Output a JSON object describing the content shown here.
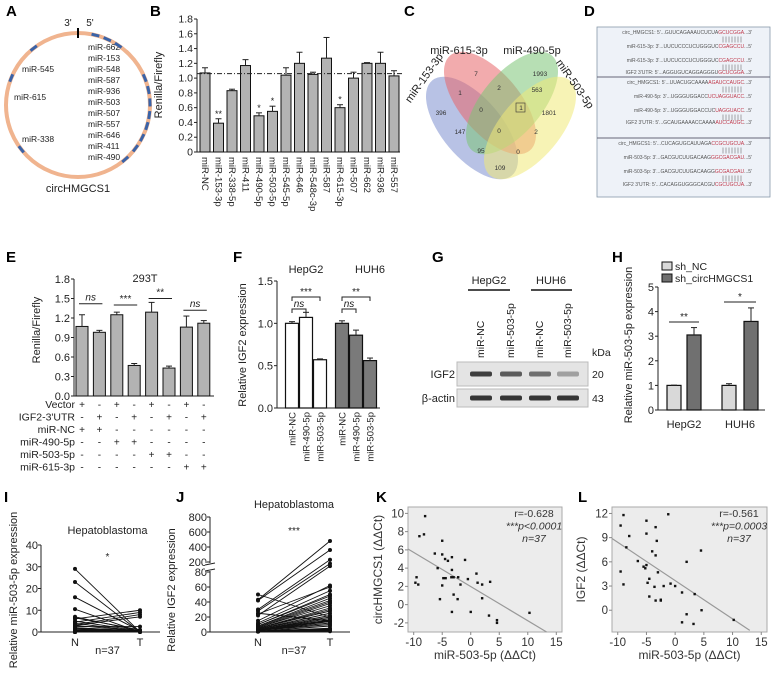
{
  "panel_labels": [
    "A",
    "B",
    "C",
    "D",
    "E",
    "F",
    "G",
    "H",
    "I",
    "J",
    "K",
    "L"
  ],
  "panel_a": {
    "name": "circHMGCS1",
    "end3": "3'",
    "end5": "5'",
    "sites": [
      "miR-662",
      "miR-153",
      "miR-548",
      "miR-587",
      "miR-936",
      "miR-503",
      "miR-507",
      "miR-557",
      "miR-646",
      "miR-411",
      "miR-490",
      "miR-338",
      "miR-615",
      "miR-545"
    ],
    "colors": {
      "ring": "#f0b48f",
      "site": "#3a63a8"
    }
  },
  "panel_c": {
    "sets": [
      "miR-153-3p",
      "miR-615-3p",
      "miR-490-5p",
      "miR-503-5p"
    ],
    "regions": [
      "7",
      "1993",
      "1",
      "2",
      "563",
      "396",
      "0",
      "1",
      "1801",
      "147",
      "0",
      "2",
      "95",
      "0",
      "109"
    ],
    "colors": [
      "#7d8fd0",
      "#e8666a",
      "#7cc576",
      "#f0e978"
    ]
  },
  "panel_d": {
    "lines": [
      [
        "circ_HMGCS1: 5'...GUUCAGAAAUCUCUA",
        "GCUCGGA",
        "...3'"
      ],
      [
        "miR-615-3p: 3'...UUCUCCCUCUGGGUC",
        "CGAGCCU",
        "...5'"
      ],
      [
        "miR-615-3p: 3'...UUCUCCCUCUGGGUC",
        "CGAGCCU",
        "...5'"
      ],
      [
        "IGF2 3'UTR: 5'...AGGUGUCAGGAGGGU",
        "GCUCGGA",
        "...3'"
      ],
      [
        "circ_HMGCS1: 5'...UUACUGCAAAA",
        "AGAUCCAUGC",
        "...3'"
      ],
      [
        "miR-490-5p: 3'...UGGGUGGACC",
        "UCUAGGUACC",
        "...5'"
      ],
      [
        "miR-490-5p: 3'...UGGGUGGACCUC",
        "UAGGUACC",
        "...5'"
      ],
      [
        "IGF2 3'UTR: 5'...GCAUGAAAACCAAAA",
        "AUCCAUGC",
        "...3'"
      ],
      [
        "circ_HMGCS1: 5'...CUCAGUGCAUUAGA",
        "CCGCUGCUA",
        "...3'"
      ],
      [
        "miR-503-5p: 3'...GACGUCUUGACAAG",
        "GGCGACGAU",
        "...5'"
      ],
      [
        "miR-503-5p: 3'...GACGUCUUGACAAGG",
        "GCGACGAU",
        "...5'"
      ],
      [
        "IGF2 3'UTR: 5'...CACAGGUGGGCACGU",
        "CGCUGCUA",
        "...3'"
      ]
    ],
    "highlight_color": "#c0394b"
  },
  "panel_g": {
    "cell_lines": [
      "HepG2",
      "HUH6"
    ],
    "lanes": [
      "miR-NC",
      "miR-503-5p",
      "miR-NC",
      "miR-503-5p"
    ],
    "blots": [
      {
        "label": "IGF2",
        "kda": "20",
        "intensity": [
          0.85,
          0.7,
          0.6,
          0.35
        ]
      },
      {
        "label": "β-actin",
        "kda": "43",
        "intensity": [
          0.9,
          0.9,
          0.9,
          0.9
        ]
      }
    ],
    "kda_label": "kDa"
  },
  "chart_data": [
    {
      "panel": "B",
      "type": "bar",
      "ylabel": "Renilla/Firefly",
      "ylim": [
        0,
        1.8
      ],
      "yticks": [
        "0",
        "0.2",
        "0.4",
        "0.6",
        "0.8",
        "1.0",
        "1.2",
        "1.4",
        "1.6",
        "1.8"
      ],
      "reference_line": 1.06,
      "categories": [
        "miR-NC",
        "miR-153-3p",
        "miR-338-5p",
        "miR-411",
        "miR-490-5p",
        "miR-503-5p",
        "miR-545-5p",
        "miR-646",
        "miR-548c-3p",
        "miR-587",
        "miR-615-3p",
        "miR-507",
        "miR-662",
        "miR-936",
        "miR-557"
      ],
      "values": [
        1.07,
        0.39,
        0.83,
        1.17,
        0.49,
        0.55,
        1.04,
        1.2,
        1.05,
        1.27,
        0.6,
        1.0,
        1.2,
        1.2,
        1.03
      ],
      "errors": [
        0.07,
        0.06,
        0.02,
        0.08,
        0.04,
        0.07,
        0.1,
        0.15,
        0.03,
        0.28,
        0.04,
        0.08,
        0.01,
        0.15,
        0.07
      ],
      "significance": [
        "",
        "**",
        "",
        "",
        "*",
        "*",
        "",
        "",
        "",
        "",
        "*",
        "",
        "",
        "",
        ""
      ],
      "color": "#b3b3b3"
    },
    {
      "panel": "E",
      "type": "bar",
      "title": "293T",
      "ylabel": "Renilla/Firefly",
      "ylim": [
        0,
        1.8
      ],
      "yticks": [
        "0.0",
        "0.3",
        "0.6",
        "0.9",
        "1.2",
        "1.5",
        "1.8"
      ],
      "values": [
        1.07,
        0.98,
        1.25,
        0.47,
        1.29,
        0.43,
        1.06,
        1.12
      ],
      "errors": [
        0.18,
        0.03,
        0.04,
        0.03,
        0.15,
        0.03,
        0.17,
        0.04
      ],
      "comparisons": [
        {
          "pair": [
            0,
            1
          ],
          "label": "ns",
          "y": 1.42
        },
        {
          "pair": [
            2,
            3
          ],
          "label": "***",
          "y": 1.4
        },
        {
          "pair": [
            4,
            5
          ],
          "label": "**",
          "y": 1.5
        },
        {
          "pair": [
            6,
            7
          ],
          "label": "ns",
          "y": 1.32
        }
      ],
      "conditions": [
        {
          "label": "Vector",
          "marks": [
            "+",
            "-",
            "+",
            "-",
            "+",
            "-",
            "+",
            "-"
          ]
        },
        {
          "label": "IGF2-3'UTR",
          "marks": [
            "-",
            "+",
            "-",
            "+",
            "-",
            "+",
            "-",
            "+"
          ]
        },
        {
          "label": "miR-NC",
          "marks": [
            "+",
            "+",
            "-",
            "-",
            "-",
            "-",
            "-",
            "-"
          ]
        },
        {
          "label": "miR-490-5p",
          "marks": [
            "-",
            "-",
            "+",
            "+",
            "-",
            "-",
            "-",
            "-"
          ]
        },
        {
          "label": "miR-503-5p",
          "marks": [
            "-",
            "-",
            "-",
            "-",
            "+",
            "+",
            "-",
            "-"
          ]
        },
        {
          "label": "miR-615-3p",
          "marks": [
            "-",
            "-",
            "-",
            "-",
            "-",
            "-",
            "+",
            "+"
          ]
        }
      ],
      "color": "#b3b3b3"
    },
    {
      "panel": "F",
      "type": "bar",
      "ylabel": "Relative IGF2 expression",
      "ylim": [
        0,
        1.5
      ],
      "yticks": [
        "0.0",
        "0.5",
        "1.0",
        "1.5"
      ],
      "groups": [
        "HepG2",
        "HUH6"
      ],
      "categories": [
        "miR-NC",
        "miR-490-5p",
        "miR-503-5p"
      ],
      "series": [
        {
          "group": "HepG2",
          "values": [
            1.0,
            1.07,
            0.57
          ],
          "errors": [
            0.02,
            0.06,
            0.01
          ],
          "color": "#ffffff"
        },
        {
          "group": "HUH6",
          "values": [
            1.0,
            0.86,
            0.56
          ],
          "errors": [
            0.03,
            0.06,
            0.03
          ],
          "color": "#7a7a7a"
        }
      ],
      "comparisons": [
        {
          "group": 0,
          "pair": [
            0,
            2
          ],
          "label": "***"
        },
        {
          "group": 0,
          "pair": [
            0,
            1
          ],
          "label": "ns"
        },
        {
          "group": 1,
          "pair": [
            0,
            2
          ],
          "label": "**"
        },
        {
          "group": 1,
          "pair": [
            0,
            1
          ],
          "label": "ns"
        }
      ]
    },
    {
      "panel": "H",
      "type": "bar",
      "ylabel": "Relative miR-503-5p expression",
      "ylim": [
        0,
        5
      ],
      "yticks": [
        "0",
        "1",
        "2",
        "3",
        "4",
        "5"
      ],
      "categories": [
        "HepG2",
        "HUH6"
      ],
      "series": [
        {
          "name": "sh_NC",
          "values": [
            1.0,
            1.0
          ],
          "errors": [
            0.01,
            0.07
          ],
          "color": "#d9d9d9"
        },
        {
          "name": "sh_circHMGCS1",
          "values": [
            3.05,
            3.6
          ],
          "errors": [
            0.3,
            0.55
          ],
          "color": "#707070"
        }
      ],
      "significance": [
        "**",
        "*"
      ],
      "legend": "top"
    },
    {
      "panel": "I",
      "type": "line",
      "title": "Hepatoblastoma",
      "ylabel": "Relative miR-503-5p expression",
      "ylim": [
        0,
        40
      ],
      "yticks": [
        "0",
        "10",
        "20",
        "30",
        "40"
      ],
      "categories": [
        "N",
        "T"
      ],
      "n_label": "n=37",
      "significance": "*",
      "N": [
        29,
        23,
        16,
        10.5,
        7,
        6.5,
        6,
        5,
        4.5,
        4,
        3.5,
        3,
        3,
        2.5,
        2,
        2,
        1.5,
        1.5,
        1,
        1,
        1,
        0.8,
        0.5,
        0.5,
        0.5,
        0.3,
        0.3,
        0.2,
        0.2,
        0.1,
        0.1,
        0.1,
        0,
        0,
        0,
        0,
        0
      ],
      "T": [
        0,
        0,
        0.5,
        0,
        0.5,
        1,
        10,
        0.5,
        9,
        0.3,
        8,
        0.5,
        7,
        2.5,
        0.5,
        0.2,
        0.3,
        0.5,
        0.2,
        0.1,
        0.5,
        0.3,
        0.2,
        0.1,
        0.5,
        0.3,
        0.1,
        0.2,
        0.1,
        0.3,
        0.2,
        0.5,
        0.1,
        0.2,
        0.3,
        0.1,
        0.2
      ]
    },
    {
      "panel": "J",
      "type": "line",
      "title": "Hepatoblastoma",
      "ylabel": "Relative IGF2 expression",
      "ylim": [
        0,
        800
      ],
      "axis_break": [
        80,
        200
      ],
      "yticks": [
        "0",
        "20",
        "40",
        "60",
        "80",
        "200",
        "400",
        "600",
        "800"
      ],
      "categories": [
        "N",
        "T"
      ],
      "n_label": "n=37",
      "significance": "***",
      "N": [
        50,
        43,
        42,
        30,
        28,
        25,
        24,
        22,
        15,
        12,
        10,
        10,
        8,
        8,
        7,
        6,
        6,
        5,
        5,
        5,
        4,
        4,
        3,
        3,
        3,
        2,
        2,
        2,
        2,
        1,
        1,
        1,
        1,
        1,
        0.5,
        0.5,
        0.5
      ],
      "T": [
        20,
        480,
        360,
        230,
        180,
        15,
        60,
        150,
        62,
        55,
        50,
        48,
        45,
        42,
        40,
        38,
        35,
        32,
        30,
        28,
        25,
        22,
        20,
        18,
        16,
        15,
        14,
        12,
        10,
        8,
        5,
        4,
        3,
        3,
        2,
        2,
        1
      ]
    },
    {
      "panel": "K",
      "type": "scatter",
      "xlabel": "miR-503-5p (ΔΔCt)",
      "ylabel": "circHMGCS1 (ΔΔCt)",
      "xlim": [
        -11,
        16
      ],
      "ylim": [
        -3,
        10.7
      ],
      "xticks": [
        "-10",
        "-5",
        "0",
        "5",
        "10",
        "15"
      ],
      "yticks": [
        "-2",
        "0",
        "2",
        "4",
        "6",
        "8",
        "10"
      ],
      "annotations": [
        "r=-0.628",
        "***p<0.0001",
        "n=37"
      ],
      "fit": [
        [
          -11,
          6.1
        ],
        [
          13.3,
          -3
        ]
      ],
      "points": [
        [
          -8,
          9.7
        ],
        [
          -9,
          7.5
        ],
        [
          -8.2,
          7.7
        ],
        [
          -5,
          7
        ],
        [
          -6.3,
          5.6
        ],
        [
          -5,
          5.5
        ],
        [
          -4.5,
          5
        ],
        [
          -4,
          4.8
        ],
        [
          -3.3,
          5.2
        ],
        [
          -1,
          4.9
        ],
        [
          -5.8,
          4
        ],
        [
          -3.3,
          3.8
        ],
        [
          -9.5,
          3
        ],
        [
          -9.7,
          2.4
        ],
        [
          -9.2,
          2.2
        ],
        [
          -4.8,
          2.9
        ],
        [
          -4.4,
          2.9
        ],
        [
          -3.4,
          3
        ],
        [
          -3,
          3
        ],
        [
          -2.2,
          3
        ],
        [
          -0.5,
          2.8
        ],
        [
          1,
          3.4
        ],
        [
          3.4,
          2.5
        ],
        [
          -1.8,
          2.2
        ],
        [
          1.2,
          2.4
        ],
        [
          2,
          2.2
        ],
        [
          -5,
          2.1
        ],
        [
          -5.4,
          0.6
        ],
        [
          -3,
          1.1
        ],
        [
          -2.3,
          0.6
        ],
        [
          2,
          0.7
        ],
        [
          -3.3,
          -0.8
        ],
        [
          0,
          -0.8
        ],
        [
          3.2,
          -1.2
        ],
        [
          4.6,
          -1.7
        ],
        [
          4.6,
          -2
        ],
        [
          10.3,
          -0.9
        ]
      ]
    },
    {
      "panel": "L",
      "type": "scatter",
      "xlabel": "miR-503-5p (ΔΔCt)",
      "ylabel": "IGF2 (ΔΔCt)",
      "xlim": [
        -11,
        16
      ],
      "ylim": [
        -2.7,
        12.8
      ],
      "xticks": [
        "-10",
        "-5",
        "0",
        "5",
        "10",
        "15"
      ],
      "yticks": [
        "0",
        "3",
        "6",
        "9",
        "12"
      ],
      "annotations": [
        "r=-0.561",
        "***p=0.0003",
        "n=37"
      ],
      "fit": [
        [
          -11,
          8.9
        ],
        [
          13,
          -2.5
        ]
      ],
      "points": [
        [
          -9,
          11.8
        ],
        [
          -1.2,
          11.9
        ],
        [
          -5,
          11.1
        ],
        [
          -9.5,
          10.5
        ],
        [
          -3.4,
          10.3
        ],
        [
          -5,
          9.5
        ],
        [
          -8,
          9.2
        ],
        [
          -3.2,
          8.6
        ],
        [
          -8.5,
          7.8
        ],
        [
          -4,
          7.3
        ],
        [
          4.5,
          7.4
        ],
        [
          -3.4,
          6.8
        ],
        [
          -6.5,
          6.1
        ],
        [
          2,
          6
        ],
        [
          -5.5,
          5.4
        ],
        [
          -5,
          5.6
        ],
        [
          -5.2,
          5.2
        ],
        [
          -3,
          4.7
        ],
        [
          -9.5,
          4.8
        ],
        [
          -4.5,
          3.9
        ],
        [
          -0.8,
          3.3
        ],
        [
          0,
          3
        ],
        [
          -2,
          3
        ],
        [
          -3.6,
          2.9
        ],
        [
          -9,
          3.2
        ],
        [
          -4.8,
          3.4
        ],
        [
          1.2,
          2.2
        ],
        [
          3.4,
          2
        ],
        [
          -4.5,
          1.7
        ],
        [
          -2.5,
          1.3
        ],
        [
          -2.5,
          1.2
        ],
        [
          -3.4,
          1.2
        ],
        [
          4.6,
          0
        ],
        [
          2,
          -0.5
        ],
        [
          1.2,
          -1.5
        ],
        [
          3.2,
          -1.7
        ],
        [
          10.2,
          -1.2
        ]
      ]
    }
  ]
}
